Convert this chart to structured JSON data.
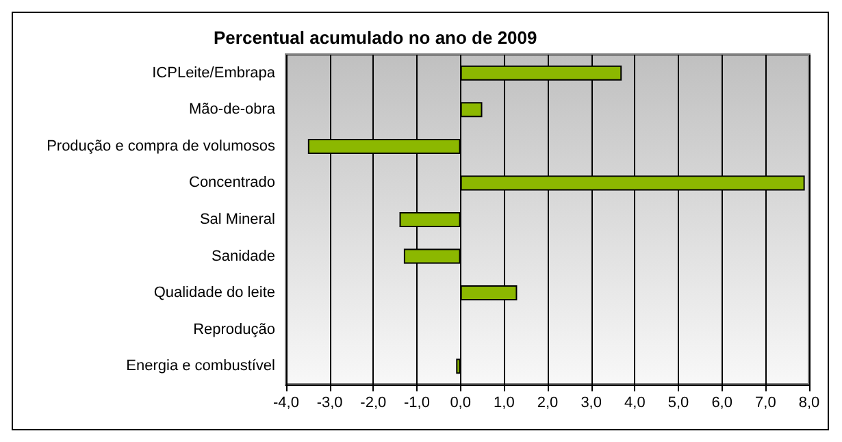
{
  "chart_data": {
    "type": "bar",
    "orientation": "horizontal",
    "title": "Percentual acumulado no ano de 2009",
    "categories": [
      "ICPLeite/Embrapa",
      "Mão-de-obra",
      "Produção e compra de volumosos",
      "Concentrado",
      "Sal Mineral",
      "Sanidade",
      "Qualidade do leite",
      "Reprodução",
      "Energia e combustível"
    ],
    "values": [
      3.7,
      0.5,
      -3.5,
      7.9,
      -1.4,
      -1.3,
      1.3,
      0,
      -0.1
    ],
    "color": "#8cb800",
    "xlim": [
      -4,
      8
    ],
    "xticks": [
      {
        "value": -4,
        "label": "-4,0"
      },
      {
        "value": -3,
        "label": "-3,0"
      },
      {
        "value": -2,
        "label": "-2,0"
      },
      {
        "value": -1,
        "label": "-1,0"
      },
      {
        "value": 0,
        "label": "0,0"
      },
      {
        "value": 1,
        "label": "1,0"
      },
      {
        "value": 2,
        "label": "2,0"
      },
      {
        "value": 3,
        "label": "3,0"
      },
      {
        "value": 4,
        "label": "4,0"
      },
      {
        "value": 5,
        "label": "5,0"
      },
      {
        "value": 6,
        "label": "6,0"
      },
      {
        "value": 7,
        "label": "7,0"
      },
      {
        "value": 8,
        "label": "8,0"
      }
    ],
    "grid": "x"
  }
}
